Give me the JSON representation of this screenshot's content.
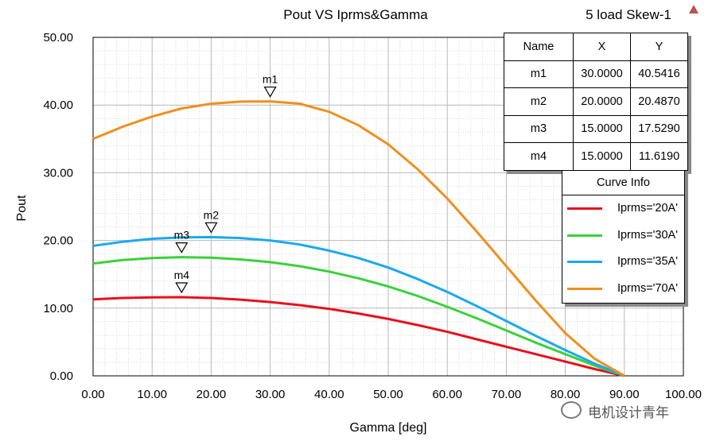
{
  "chart_data": {
    "type": "line",
    "title": "Pout VS Iprms&Gamma",
    "subtitle": "5 load Skew-1",
    "xlabel": "Gamma [deg]",
    "ylabel": "Pout",
    "xlim": [
      0,
      100
    ],
    "ylim": [
      0,
      50
    ],
    "xticks": [
      "0.00",
      "10.00",
      "20.00",
      "30.00",
      "40.00",
      "50.00",
      "60.00",
      "70.00",
      "80.00",
      "90.00",
      "100.00"
    ],
    "yticks": [
      "0.00",
      "10.00",
      "20.00",
      "30.00",
      "40.00",
      "50.00"
    ],
    "grid": true,
    "legend": {
      "title": "Curve Info",
      "placement": "right"
    },
    "series": [
      {
        "name": "Iprms='20A'",
        "color": "#e8101a",
        "x": [
          0,
          5,
          10,
          15,
          20,
          25,
          30,
          35,
          40,
          45,
          50,
          55,
          60,
          65,
          70,
          75,
          80,
          85,
          90
        ],
        "y": [
          11.3,
          11.5,
          11.6,
          11.62,
          11.5,
          11.25,
          10.9,
          10.45,
          9.9,
          9.2,
          8.4,
          7.5,
          6.5,
          5.4,
          4.3,
          3.2,
          2.1,
          1.0,
          0.0
        ]
      },
      {
        "name": "Iprms='30A'",
        "color": "#3ad13a",
        "x": [
          0,
          5,
          10,
          15,
          20,
          25,
          30,
          35,
          40,
          45,
          50,
          55,
          60,
          65,
          70,
          75,
          80,
          85,
          90
        ],
        "y": [
          16.6,
          17.1,
          17.4,
          17.53,
          17.45,
          17.2,
          16.8,
          16.2,
          15.4,
          14.4,
          13.2,
          11.8,
          10.2,
          8.5,
          6.7,
          4.9,
          3.2,
          1.5,
          0.0
        ]
      },
      {
        "name": "Iprms='35A'",
        "color": "#1aa9f0",
        "x": [
          0,
          5,
          10,
          15,
          20,
          25,
          30,
          35,
          40,
          45,
          50,
          55,
          60,
          65,
          70,
          75,
          80,
          85,
          90
        ],
        "y": [
          19.2,
          19.8,
          20.25,
          20.45,
          20.49,
          20.35,
          20.0,
          19.4,
          18.5,
          17.4,
          16.0,
          14.3,
          12.4,
          10.3,
          8.1,
          5.9,
          3.8,
          1.8,
          0.0
        ]
      },
      {
        "name": "Iprms='70A'",
        "color": "#f08f1e",
        "x": [
          0,
          5,
          10,
          15,
          20,
          25,
          30,
          35,
          40,
          45,
          50,
          55,
          60,
          65,
          70,
          75,
          80,
          85,
          90
        ],
        "y": [
          35.0,
          36.8,
          38.3,
          39.5,
          40.2,
          40.5,
          40.54,
          40.2,
          39.0,
          37.0,
          34.2,
          30.5,
          26.2,
          21.3,
          16.2,
          11.1,
          6.3,
          2.5,
          0.0
        ]
      }
    ],
    "markers": [
      {
        "name": "m1",
        "x": 30,
        "y": 40.5416
      },
      {
        "name": "m2",
        "x": 20,
        "y": 20.487
      },
      {
        "name": "m3",
        "x": 15,
        "y": 17.529
      },
      {
        "name": "m4",
        "x": 15,
        "y": 11.619
      }
    ],
    "marker_table": {
      "headers": [
        "Name",
        "X",
        "Y"
      ],
      "rows": [
        [
          "m1",
          "30.0000",
          "40.5416"
        ],
        [
          "m2",
          "20.0000",
          "20.4870"
        ],
        [
          "m3",
          "15.0000",
          "17.5290"
        ],
        [
          "m4",
          "15.0000",
          "11.6190"
        ]
      ]
    }
  },
  "watermark": {
    "text": "电机设计青年",
    "icon": "wechat-icon"
  },
  "corner_icon": "ansys-logo-icon"
}
